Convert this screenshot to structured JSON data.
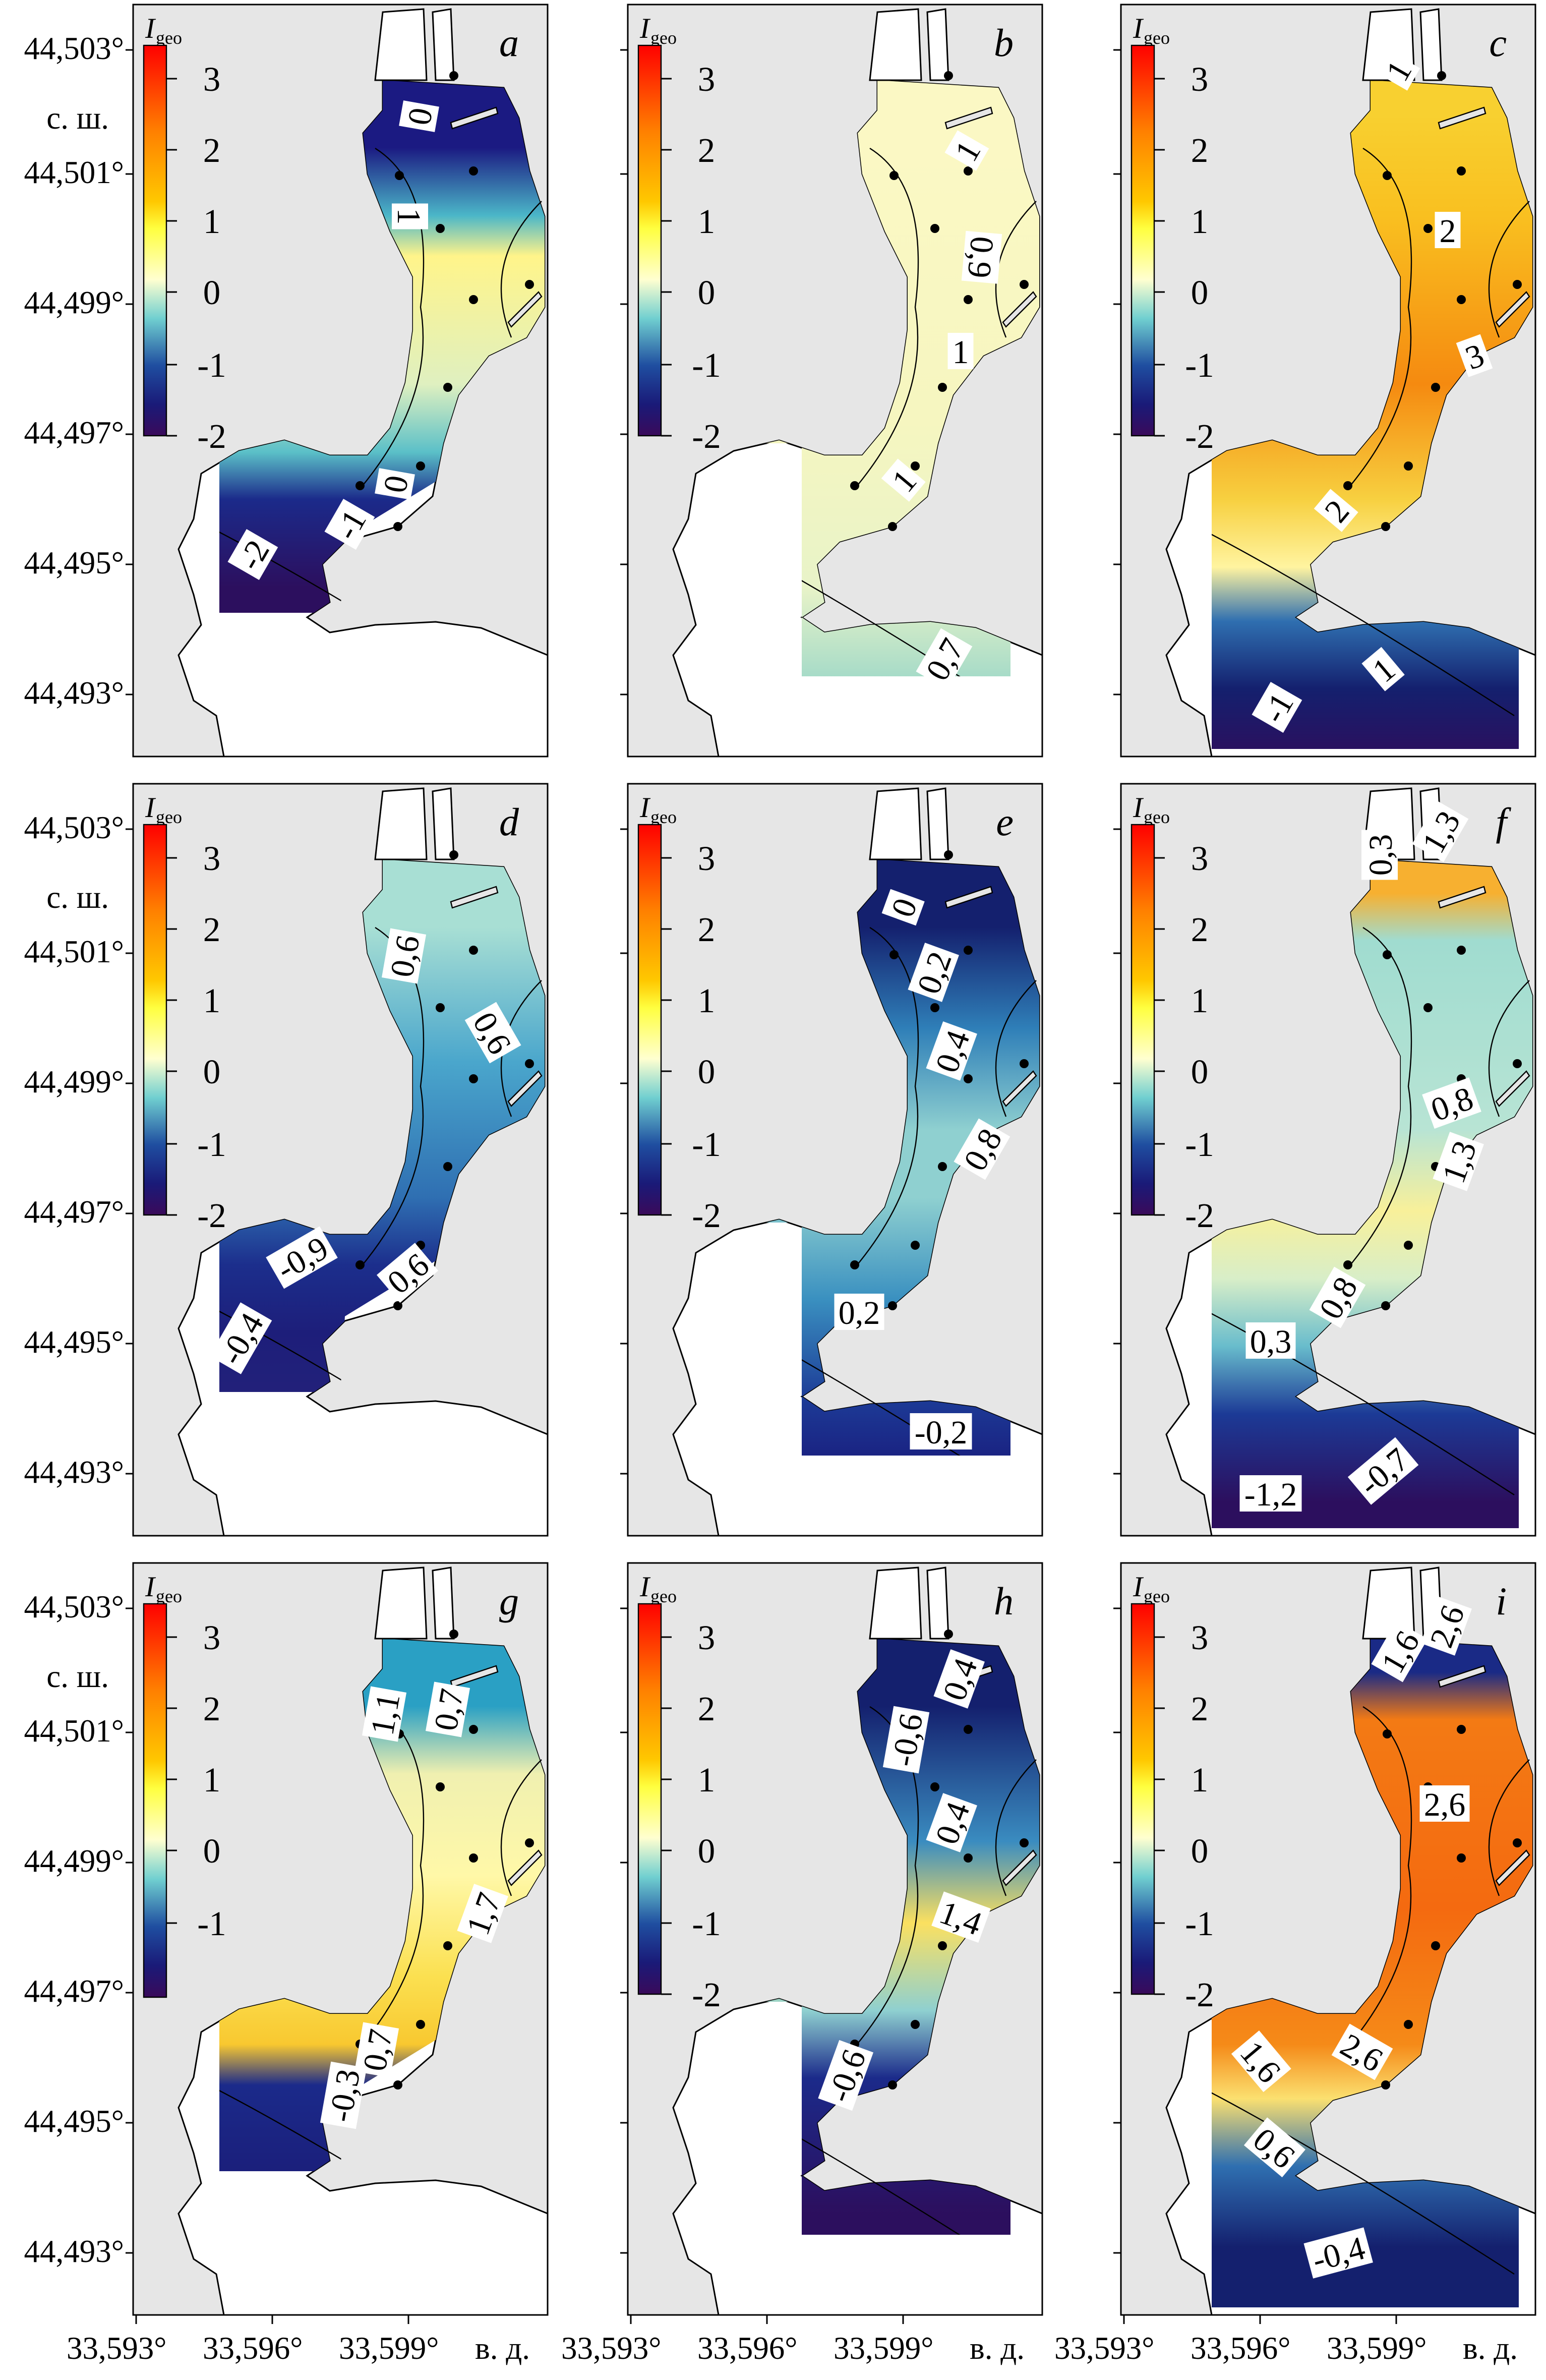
{
  "figure": {
    "colorbar_title": "I",
    "colorbar_subscript": "geo",
    "lat_ticks": [
      "44,503°",
      "44,501°",
      "44,499°",
      "44,497°",
      "44,495°",
      "44,493°"
    ],
    "lat_unit": "с. ш.",
    "lon_ticks": [
      "33,593°",
      "33,596°",
      "33,599°"
    ],
    "lon_unit": "в. д."
  },
  "panels": [
    {
      "letter": "a",
      "colorbar_ticks": [
        "3",
        "2",
        "1",
        "0",
        "-1",
        "-2"
      ],
      "contour_labels": [
        "0",
        "1",
        "0",
        "-1",
        "-2"
      ]
    },
    {
      "letter": "b",
      "colorbar_ticks": [
        "3",
        "2",
        "1",
        "0",
        "-1",
        "-2"
      ],
      "contour_labels": [
        "1",
        "0,9",
        "1",
        "1",
        "0,7"
      ]
    },
    {
      "letter": "c",
      "colorbar_ticks": [
        "3",
        "2",
        "1",
        "0",
        "-1",
        "-2"
      ],
      "contour_labels": [
        "1",
        "2",
        "3",
        "2",
        "1",
        "-1"
      ]
    },
    {
      "letter": "d",
      "colorbar_ticks": [
        "3",
        "2",
        "1",
        "0",
        "-1",
        "-2"
      ],
      "contour_labels": [
        "0,6",
        "0,6",
        "-0,9",
        "0,6",
        "-0,4"
      ]
    },
    {
      "letter": "e",
      "colorbar_ticks": [
        "3",
        "2",
        "1",
        "0",
        "-1",
        "-2"
      ],
      "contour_labels": [
        "0",
        "0,2",
        "0,4",
        "0,8",
        "0,2",
        "-0,2"
      ]
    },
    {
      "letter": "f",
      "colorbar_ticks": [
        "3",
        "2",
        "1",
        "0",
        "-1",
        "-2"
      ],
      "contour_labels": [
        "0,3",
        "1,3",
        "0,8",
        "1,3",
        "0,8",
        "0,3",
        "-0,7",
        "-1,2"
      ]
    },
    {
      "letter": "g",
      "colorbar_ticks": [
        "3",
        "2",
        "1",
        "0",
        "-1"
      ],
      "contour_labels": [
        "1,1",
        "0,7",
        "1,7",
        "0,7",
        "-0,3"
      ]
    },
    {
      "letter": "h",
      "colorbar_ticks": [
        "3",
        "2",
        "1",
        "0",
        "-1",
        "-2"
      ],
      "contour_labels": [
        "0,4",
        "-0,6",
        "0,4",
        "1,4",
        "-0,6"
      ]
    },
    {
      "letter": "i",
      "colorbar_ticks": [
        "3",
        "2",
        "1",
        "0",
        "-1",
        "-2"
      ],
      "contour_labels": [
        "1,6",
        "2,6",
        "2,6",
        "2,6",
        "1,6",
        "0,6",
        "-0,4"
      ]
    }
  ]
}
